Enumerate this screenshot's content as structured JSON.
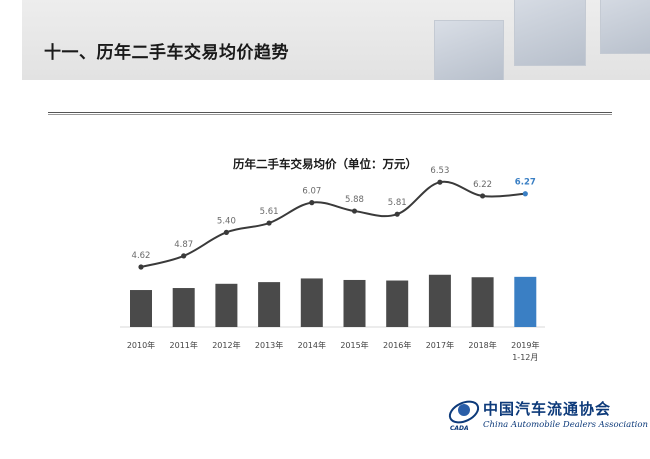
{
  "header": {
    "title": "十一、历年二手车交易均价趋势"
  },
  "logo": {
    "name_cn": "中国汽车流通协会",
    "name_en": "China Automobile Dealers Association",
    "abbr": "CADA"
  },
  "colors": {
    "bar": "#4a4a4a",
    "bar_highlight": "#3a7fc4",
    "line": "#3a3a3a",
    "label": "#6a6a6a",
    "label_highlight": "#3a7fc4"
  },
  "chart_data": {
    "type": "bar+line",
    "title": "历年二手车交易均价（单位：万元）",
    "categories": [
      "2010年",
      "2011年",
      "2012年",
      "2013年",
      "2014年",
      "2015年",
      "2016年",
      "2017年",
      "2018年",
      "2019年"
    ],
    "category_sublabels": [
      "",
      "",
      "",
      "",
      "",
      "",
      "",
      "",
      "",
      "1-12月"
    ],
    "values": [
      4.62,
      4.87,
      5.4,
      5.61,
      6.07,
      5.88,
      5.81,
      6.53,
      6.22,
      6.27
    ],
    "value_labels": [
      "4.62",
      "4.87",
      "5.40",
      "5.61",
      "6.07",
      "5.88",
      "5.81",
      "6.53",
      "6.22",
      "6.27"
    ],
    "highlight_index": 9,
    "grid": false,
    "legend": "none"
  }
}
